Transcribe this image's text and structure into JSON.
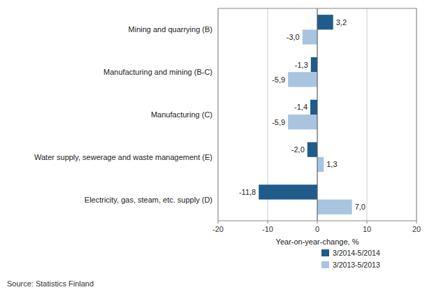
{
  "chart_data": {
    "type": "bar",
    "orientation": "horizontal",
    "categories": [
      "Electricity, gas, steam, etc. supply  (D)",
      "Water supply, sewerage and waste management (E)",
      "Manufacturing (C)",
      "Manufacturing and mining (B-C)",
      "Mining and quarrying (B)"
    ],
    "series": [
      {
        "name": "3/2014-5/2014",
        "color": "#1F5C8B",
        "values": [
          -11.8,
          -2.0,
          -1.4,
          -1.3,
          3.2
        ],
        "value_labels": [
          "-11,8",
          "-2,0",
          "-1,4",
          "-1,3",
          "3,2"
        ]
      },
      {
        "name": "3/2013-5/2013",
        "color": "#A8C4E0",
        "values": [
          7.0,
          1.3,
          -5.9,
          -5.9,
          -3.0
        ],
        "value_labels": [
          "7,0",
          "1,3",
          "-5,9",
          "-5,9",
          "-3,0"
        ]
      }
    ],
    "xlabel": "Year-on-year-change, %",
    "source": "Source: Statistics Finland",
    "xlim": [
      -20,
      20
    ],
    "xticks": [
      -20,
      -10,
      0,
      10,
      20
    ],
    "grid": true,
    "legend": "bottom",
    "data_labels": true
  }
}
